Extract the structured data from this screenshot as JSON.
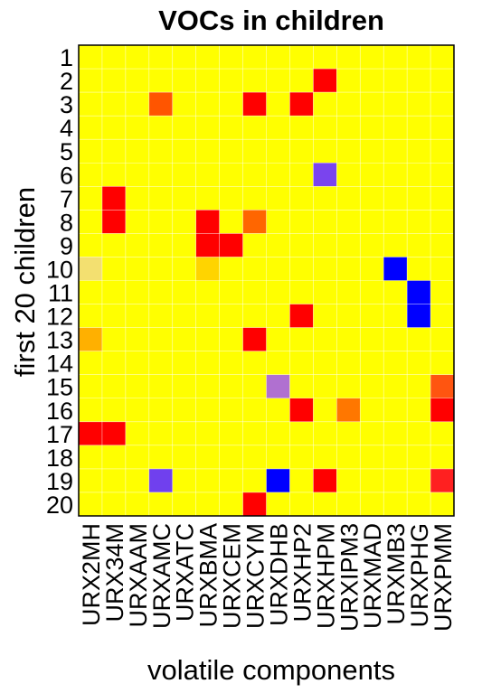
{
  "chart_data": {
    "type": "heatmap",
    "title": "VOCs in children",
    "x_label": "volatile components",
    "y_label": "first 20 children",
    "columns": [
      "URX2MH",
      "URX34M",
      "URXAAM",
      "URXAMC",
      "URXATC",
      "URXBMA",
      "URXCEM",
      "URXCYM",
      "URXDHB",
      "URXHP2",
      "URXHPM",
      "URXIPM3",
      "URXMAD",
      "URXMB3",
      "URXPHG",
      "URXPMM"
    ],
    "rows": [
      1,
      2,
      3,
      4,
      5,
      6,
      7,
      8,
      9,
      10,
      11,
      12,
      13,
      14,
      15,
      16,
      17,
      18,
      19,
      20
    ],
    "grid": true,
    "grid_color": "#ffffff",
    "colors": [
      [
        "yellow",
        "yellow",
        "yellow",
        "yellow",
        "yellow",
        "yellow",
        "yellow",
        "yellow",
        "yellow",
        "yellow",
        "yellow",
        "yellow",
        "yellow",
        "yellow",
        "yellow",
        "yellow"
      ],
      [
        "yellow",
        "yellow",
        "yellow",
        "yellow",
        "yellow",
        "yellow",
        "yellow",
        "yellow",
        "yellow",
        "yellow",
        "red",
        "yellow",
        "yellow",
        "yellow",
        "yellow",
        "yellow"
      ],
      [
        "yellow",
        "yellow",
        "yellow",
        "#ff5500",
        "yellow",
        "yellow",
        "yellow",
        "red",
        "yellow",
        "red",
        "yellow",
        "yellow",
        "yellow",
        "yellow",
        "yellow",
        "yellow"
      ],
      [
        "yellow",
        "yellow",
        "yellow",
        "yellow",
        "yellow",
        "yellow",
        "yellow",
        "yellow",
        "yellow",
        "yellow",
        "yellow",
        "yellow",
        "yellow",
        "yellow",
        "yellow",
        "yellow"
      ],
      [
        "yellow",
        "yellow",
        "yellow",
        "yellow",
        "yellow",
        "yellow",
        "yellow",
        "yellow",
        "yellow",
        "yellow",
        "yellow",
        "yellow",
        "yellow",
        "yellow",
        "yellow",
        "yellow"
      ],
      [
        "yellow",
        "yellow",
        "yellow",
        "yellow",
        "yellow",
        "yellow",
        "yellow",
        "yellow",
        "yellow",
        "yellow",
        "#7a44ee",
        "yellow",
        "yellow",
        "yellow",
        "yellow",
        "yellow"
      ],
      [
        "yellow",
        "red",
        "yellow",
        "yellow",
        "yellow",
        "yellow",
        "yellow",
        "yellow",
        "yellow",
        "yellow",
        "yellow",
        "yellow",
        "yellow",
        "yellow",
        "yellow",
        "yellow"
      ],
      [
        "yellow",
        "red",
        "yellow",
        "yellow",
        "yellow",
        "red",
        "yellow",
        "#ff6600",
        "yellow",
        "yellow",
        "yellow",
        "yellow",
        "yellow",
        "yellow",
        "yellow",
        "yellow"
      ],
      [
        "yellow",
        "yellow",
        "yellow",
        "yellow",
        "yellow",
        "red",
        "red",
        "yellow",
        "yellow",
        "yellow",
        "yellow",
        "yellow",
        "yellow",
        "yellow",
        "yellow",
        "yellow"
      ],
      [
        "#f3e070",
        "yellow",
        "yellow",
        "yellow",
        "yellow",
        "#ffd400",
        "yellow",
        "yellow",
        "yellow",
        "yellow",
        "yellow",
        "yellow",
        "yellow",
        "blue",
        "yellow",
        "yellow"
      ],
      [
        "yellow",
        "yellow",
        "yellow",
        "yellow",
        "yellow",
        "yellow",
        "yellow",
        "yellow",
        "yellow",
        "yellow",
        "yellow",
        "yellow",
        "yellow",
        "yellow",
        "blue",
        "yellow"
      ],
      [
        "yellow",
        "yellow",
        "yellow",
        "yellow",
        "yellow",
        "yellow",
        "yellow",
        "yellow",
        "yellow",
        "red",
        "yellow",
        "yellow",
        "yellow",
        "yellow",
        "blue",
        "yellow"
      ],
      [
        "#ffb000",
        "yellow",
        "yellow",
        "yellow",
        "yellow",
        "yellow",
        "yellow",
        "red",
        "yellow",
        "yellow",
        "yellow",
        "yellow",
        "yellow",
        "yellow",
        "yellow",
        "yellow"
      ],
      [
        "yellow",
        "yellow",
        "yellow",
        "yellow",
        "yellow",
        "yellow",
        "yellow",
        "yellow",
        "yellow",
        "yellow",
        "yellow",
        "yellow",
        "yellow",
        "yellow",
        "yellow",
        "yellow"
      ],
      [
        "yellow",
        "yellow",
        "yellow",
        "yellow",
        "yellow",
        "yellow",
        "yellow",
        "yellow",
        "#b070d0",
        "yellow",
        "yellow",
        "yellow",
        "yellow",
        "yellow",
        "yellow",
        "#ff5510"
      ],
      [
        "yellow",
        "yellow",
        "yellow",
        "yellow",
        "yellow",
        "yellow",
        "yellow",
        "yellow",
        "yellow",
        "red",
        "yellow",
        "#ff7700",
        "yellow",
        "yellow",
        "yellow",
        "red"
      ],
      [
        "red",
        "red",
        "yellow",
        "yellow",
        "yellow",
        "yellow",
        "yellow",
        "yellow",
        "yellow",
        "yellow",
        "yellow",
        "yellow",
        "yellow",
        "yellow",
        "yellow",
        "yellow"
      ],
      [
        "yellow",
        "yellow",
        "yellow",
        "yellow",
        "yellow",
        "yellow",
        "yellow",
        "yellow",
        "yellow",
        "yellow",
        "yellow",
        "yellow",
        "yellow",
        "yellow",
        "yellow",
        "yellow"
      ],
      [
        "yellow",
        "yellow",
        "yellow",
        "#7040ee",
        "yellow",
        "yellow",
        "yellow",
        "yellow",
        "blue",
        "yellow",
        "red",
        "yellow",
        "yellow",
        "yellow",
        "yellow",
        "#ff2020"
      ],
      [
        "yellow",
        "yellow",
        "yellow",
        "yellow",
        "yellow",
        "yellow",
        "yellow",
        "red",
        "yellow",
        "yellow",
        "yellow",
        "yellow",
        "yellow",
        "yellow",
        "yellow",
        "yellow"
      ]
    ]
  }
}
